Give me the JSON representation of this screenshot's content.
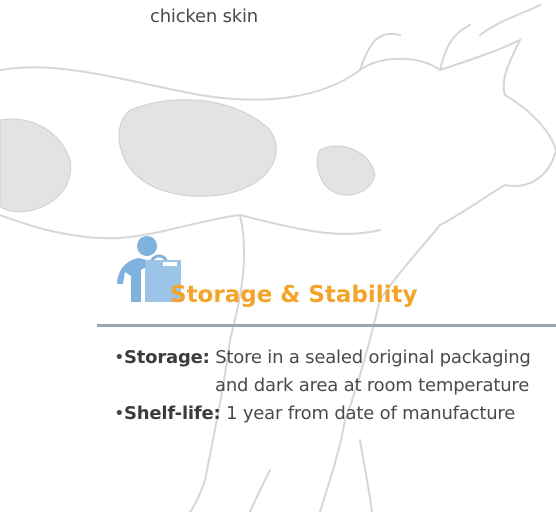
{
  "intro": {
    "text_tail": "chicken skin"
  },
  "section": {
    "title": "Storage & Stability"
  },
  "items": [
    {
      "label": "Storage:",
      "lines": [
        "Store in a sealed original packaging",
        "and dark area at room temperature"
      ]
    },
    {
      "label": "Shelf-life:",
      "text": "1 year from date of manufacture"
    }
  ]
}
